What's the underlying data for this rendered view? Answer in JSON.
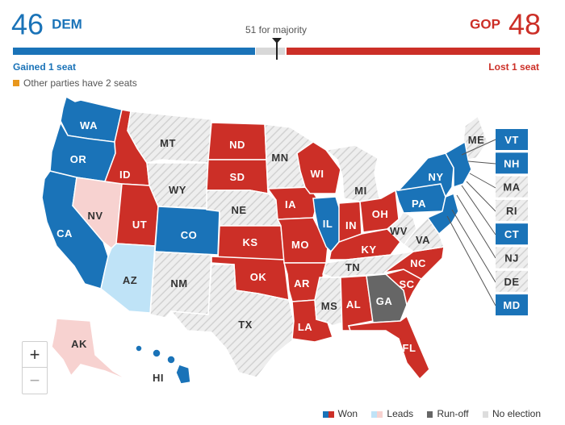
{
  "header": {
    "dem_seats": "46",
    "dem_label": "DEM",
    "gop_seats": "48",
    "gop_label": "GOP",
    "majority_label": "51 for majority",
    "dem_change": "Gained 1 seat",
    "gop_change": "Lost 1 seat",
    "other_note": "Other parties have 2 seats"
  },
  "colors": {
    "dem_won": "#1a73b8",
    "gop_won": "#cc2f27",
    "dem_leads": "#bfe3f7",
    "gop_leads": "#f7d2d0",
    "runoff": "#666666",
    "no_election": "#e3e3e3",
    "other": "#e8971d"
  },
  "states": {
    "WA": "dem_won",
    "OR": "dem_won",
    "CA": "dem_won",
    "NV": "gop_leads",
    "ID": "gop_won",
    "MT": "no_election",
    "WY": "no_election",
    "UT": "gop_won",
    "AZ": "dem_leads",
    "CO": "dem_won",
    "NM": "no_election",
    "ND": "gop_won",
    "SD": "gop_won",
    "NE": "no_election",
    "KS": "gop_won",
    "OK": "gop_won",
    "TX": "no_election",
    "MN": "no_election",
    "IA": "gop_won",
    "MO": "gop_won",
    "AR": "gop_won",
    "LA": "gop_won",
    "WI": "gop_won",
    "IL": "dem_won",
    "MI": "no_election",
    "IN": "gop_won",
    "OH": "gop_won",
    "KY": "gop_won",
    "TN": "no_election",
    "MS": "no_election",
    "AL": "gop_won",
    "GA": "runoff",
    "FL": "gop_won",
    "SC": "gop_won",
    "NC": "gop_won",
    "WV": "no_election",
    "VA": "no_election",
    "PA": "dem_won",
    "NY": "dem_won",
    "ME": "no_election",
    "AK": "gop_leads",
    "HI": "dem_won",
    "VT": "dem_won",
    "NH": "dem_won",
    "MA": "no_election",
    "RI": "no_election",
    "CT": "dem_won",
    "NJ": "no_election",
    "DE": "no_election",
    "MD": "dem_won"
  },
  "east_boxes": [
    "VT",
    "NH",
    "MA",
    "RI",
    "CT",
    "NJ",
    "DE",
    "MD"
  ],
  "zoom": {
    "in": "+",
    "out": "−"
  },
  "legend": {
    "won": "Won",
    "leads": "Leads",
    "runoff": "Run-off",
    "no_election": "No election"
  }
}
